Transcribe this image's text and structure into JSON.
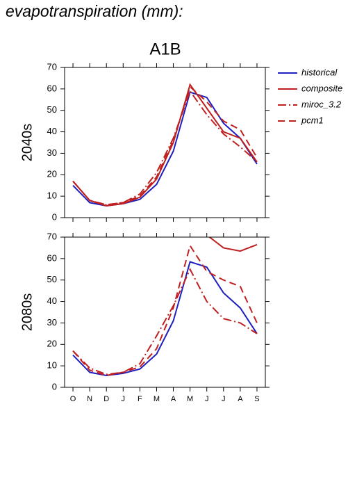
{
  "title": "evapotranspiration (mm):",
  "subtitle": "A1B",
  "chart_data": [
    {
      "type": "line",
      "ylabel": "2040s",
      "ylim": [
        0,
        70
      ],
      "yticks": [
        0,
        10,
        20,
        30,
        40,
        50,
        60,
        70
      ],
      "legend": "outside-right",
      "series": [
        {
          "name": "historical",
          "color": "#1f1fbf",
          "dash": "solid",
          "values": [
            15,
            7,
            5.5,
            6.5,
            8.5,
            15.5,
            31,
            58.5,
            56,
            44,
            37,
            25
          ]
        },
        {
          "name": "composite",
          "color": "#bf1f1f",
          "dash": "solid",
          "values": [
            17,
            8,
            5.5,
            6.5,
            9.5,
            18,
            35,
            62,
            51,
            40,
            37,
            26
          ]
        },
        {
          "name": "miroc_3.2",
          "color": "#bf1f1f",
          "dash": "dashdot",
          "values": [
            17,
            8,
            6,
            7,
            11,
            21,
            37,
            59,
            48,
            39,
            33,
            26
          ]
        },
        {
          "name": "pcm1",
          "color": "#bf1f1f",
          "dash": "dash",
          "values": [
            17,
            8,
            6,
            7,
            10,
            19,
            36,
            61,
            54,
            45,
            41,
            28
          ]
        }
      ]
    },
    {
      "type": "line",
      "ylabel": "2080s",
      "ylim": [
        0,
        70
      ],
      "yticks": [
        0,
        10,
        20,
        30,
        40,
        50,
        60,
        70
      ],
      "categories": [
        "O",
        "N",
        "D",
        "J",
        "F",
        "M",
        "A",
        "M",
        "J",
        "J",
        "A",
        "S"
      ],
      "series": [
        {
          "color": "#1f1fbf",
          "dash": "solid",
          "values": [
            15,
            7,
            5.5,
            6.5,
            8.5,
            15.5,
            31,
            58.5,
            56,
            44,
            37,
            25
          ]
        },
        {
          "color": "#bf1f1f",
          "dash": "solid",
          "values": [
            null,
            null,
            null,
            null,
            null,
            null,
            null,
            null,
            71,
            65,
            63.5,
            66.5
          ]
        },
        {
          "color": "#bf1f1f",
          "dash": "dashdot",
          "values": [
            17,
            9,
            6,
            7,
            11,
            24,
            38,
            55,
            40,
            32,
            30,
            25
          ]
        },
        {
          "color": "#bf1f1f",
          "dash": "dash",
          "values": [
            17,
            8,
            5.5,
            7,
            9.5,
            18,
            37,
            66,
            54,
            50,
            47,
            30
          ]
        }
      ]
    }
  ]
}
